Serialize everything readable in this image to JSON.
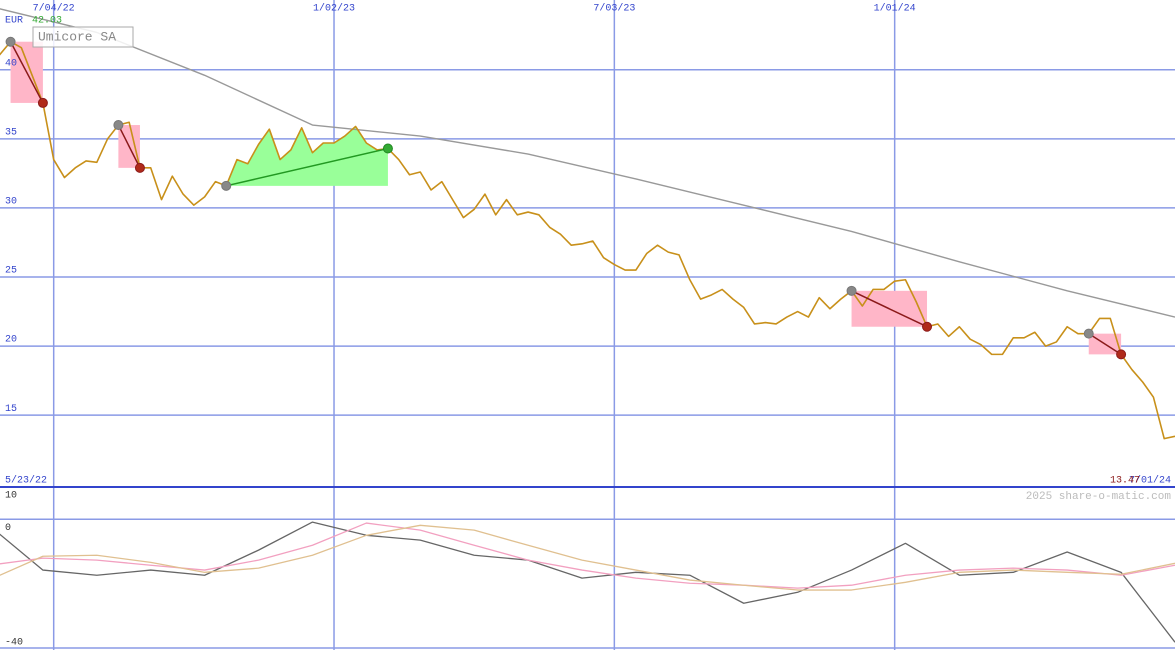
{
  "chart_data": [
    {
      "type": "line",
      "title": "Umicore SA",
      "currency": "EUR",
      "watermark": "2025 share-o-matic.com",
      "x": [
        "5/23/22",
        "5/30/22",
        "6/06/22",
        "6/13/22",
        "6/20/22",
        "6/27/22",
        "7/04/22",
        "7/11/22",
        "7/18/22",
        "7/25/22",
        "8/01/22",
        "8/08/22",
        "8/15/22",
        "8/22/22",
        "8/29/22",
        "9/05/22",
        "9/12/22",
        "9/19/22",
        "9/26/22",
        "10/03/22",
        "10/10/22",
        "10/17/22",
        "10/24/22",
        "10/31/22",
        "11/07/22",
        "11/14/22",
        "11/21/22",
        "11/28/22",
        "12/05/22",
        "12/12/22",
        "12/19/22",
        "12/26/22",
        "1/02/23",
        "1/09/23",
        "1/16/23",
        "1/23/23",
        "1/30/23",
        "2/06/23",
        "2/13/23",
        "2/20/23",
        "2/27/23",
        "3/06/23",
        "3/13/23",
        "3/20/23",
        "3/27/23",
        "4/03/23",
        "4/10/23",
        "4/17/23",
        "4/24/23",
        "5/01/23",
        "5/08/23",
        "5/15/23",
        "5/22/23",
        "5/29/23",
        "6/05/23",
        "6/12/23",
        "6/19/23",
        "6/26/23",
        "7/03/23",
        "7/10/23",
        "7/17/23",
        "7/24/23",
        "7/31/23",
        "8/07/23",
        "8/14/23",
        "8/21/23",
        "8/28/23",
        "9/04/23",
        "9/11/23",
        "9/18/23",
        "9/25/23",
        "10/02/23",
        "10/09/23",
        "10/16/23",
        "10/23/23",
        "10/30/23",
        "11/06/23",
        "11/13/23",
        "11/20/23",
        "11/27/23",
        "12/04/23",
        "12/11/23",
        "12/18/23",
        "12/25/23",
        "1/01/24",
        "1/08/24",
        "1/15/24",
        "1/22/24",
        "1/29/24",
        "2/05/24",
        "2/12/24",
        "2/19/24",
        "2/26/24",
        "3/04/24",
        "3/11/24",
        "3/18/24",
        "3/25/24",
        "4/01/24",
        "4/08/24",
        "4/15/24",
        "4/22/24",
        "4/29/24",
        "5/06/24",
        "5/13/24",
        "5/20/24",
        "5/27/24",
        "6/03/24",
        "6/10/24",
        "6/17/24",
        "6/24/24",
        "7/01/24"
      ],
      "series": [
        {
          "color": "#c8901a",
          "values": [
            40,
            41.1,
            42.03,
            41.6,
            39.6,
            37.6,
            33.5,
            32.2,
            32.9,
            33.4,
            33.3,
            35.0,
            36.0,
            36.2,
            32.9,
            32.9,
            30.6,
            32.3,
            31.0,
            30.2,
            30.8,
            31.9,
            31.6,
            33.5,
            33.2,
            34.6,
            35.7,
            33.5,
            34.2,
            35.8,
            34.0,
            34.7,
            34.7,
            35.2,
            35.9,
            34.7,
            34.2,
            34.3,
            33.5,
            32.4,
            32.6,
            31.3,
            31.9,
            30.6,
            29.3,
            29.9,
            31.0,
            29.5,
            30.6,
            29.5,
            29.7,
            29.5,
            28.6,
            28.1,
            27.3,
            27.4,
            27.6,
            26.4,
            25.9,
            25.5,
            25.5,
            26.7,
            27.3,
            26.8,
            26.6,
            24.8,
            23.4,
            23.7,
            24.1,
            23.4,
            22.8,
            21.6,
            21.7,
            21.6,
            22.1,
            22.5,
            22.1,
            23.5,
            22.7,
            23.4,
            24.0,
            22.9,
            24.1,
            24.1,
            24.7,
            24.8,
            23.2,
            21.4,
            21.6,
            20.7,
            21.4,
            20.5,
            20.1,
            19.4,
            19.4,
            20.6,
            20.6,
            21.0,
            20.0,
            20.3,
            21.4,
            20.9,
            20.9,
            22.0,
            22.0,
            19.4,
            18.3,
            17.4,
            16.3,
            13.3,
            13.47
          ]
        },
        {
          "color": "#999999",
          "x": [
            "5/23/22",
            "8/01/22",
            "10/10/22",
            "12/19/22",
            "2/27/23",
            "5/08/23",
            "7/17/23",
            "9/25/23",
            "12/04/23",
            "2/12/24",
            "4/22/24",
            "7/01/24"
          ],
          "values": [
            44.6,
            42.7,
            39.6,
            36.0,
            35.2,
            33.9,
            32.1,
            30.2,
            28.3,
            26.1,
            24.0,
            22.1
          ]
        }
      ],
      "trades": [
        {
          "entry": "6/06/22",
          "exit": "6/27/22"
        },
        {
          "entry": "8/15/22",
          "exit": "8/29/22"
        },
        {
          "entry": "10/24/22",
          "exit": "2/06/23"
        },
        {
          "entry": "12/04/23",
          "exit": "1/22/24"
        },
        {
          "entry": "5/06/24",
          "exit": "5/27/24"
        }
      ],
      "xlim": [
        "5/23/22",
        "7/01/24"
      ],
      "xticks": [
        "7/04/22",
        "1/02/23",
        "7/03/23",
        "1/01/24"
      ],
      "ylim": [
        9.8,
        45.05
      ],
      "yticks": [
        15,
        20,
        25,
        30,
        35,
        40
      ],
      "grid": true
    },
    {
      "type": "line",
      "x": [
        "5/23/22",
        "6/27/22",
        "8/01/22",
        "9/05/22",
        "10/10/22",
        "11/14/22",
        "12/19/22",
        "1/23/23",
        "2/27/23",
        "4/03/23",
        "5/08/23",
        "6/12/23",
        "7/17/23",
        "8/21/23",
        "9/25/23",
        "10/30/23",
        "12/04/23",
        "1/08/24",
        "2/12/24",
        "3/18/24",
        "4/22/24",
        "5/27/24",
        "7/01/24"
      ],
      "series": [
        {
          "color": "#666666",
          "values": [
            -1.9,
            -15.8,
            -17.4,
            -15.8,
            -17.4,
            -9.6,
            -0.9,
            -5.0,
            -6.5,
            -11.2,
            -12.7,
            -18.3,
            -16.5,
            -17.4,
            -26.1,
            -22.7,
            -15.8,
            -7.5,
            -17.4,
            -16.5,
            -10.2,
            -16.5,
            -38.2
          ]
        },
        {
          "color": "#f2a0c0",
          "values": [
            -14.3,
            -12.1,
            -12.7,
            -14.3,
            -15.8,
            -12.7,
            -8.1,
            -1.2,
            -3.4,
            -8.1,
            -12.7,
            -15.8,
            -18.3,
            -19.9,
            -20.5,
            -21.4,
            -20.5,
            -17.4,
            -15.8,
            -15.2,
            -15.8,
            -17.4,
            -14.3
          ]
        },
        {
          "color": "#e0c090",
          "values": [
            -18.9,
            -11.5,
            -11.2,
            -13.4,
            -16.5,
            -15.2,
            -11.2,
            -5.0,
            -1.9,
            -3.4,
            -8.1,
            -12.7,
            -15.8,
            -18.9,
            -20.5,
            -22.0,
            -22.0,
            -19.6,
            -16.5,
            -15.8,
            -16.5,
            -17.1,
            -13.7
          ]
        }
      ],
      "ylim": [
        -40,
        10
      ],
      "yticks": [
        -40,
        0,
        10
      ],
      "grid": true
    }
  ]
}
